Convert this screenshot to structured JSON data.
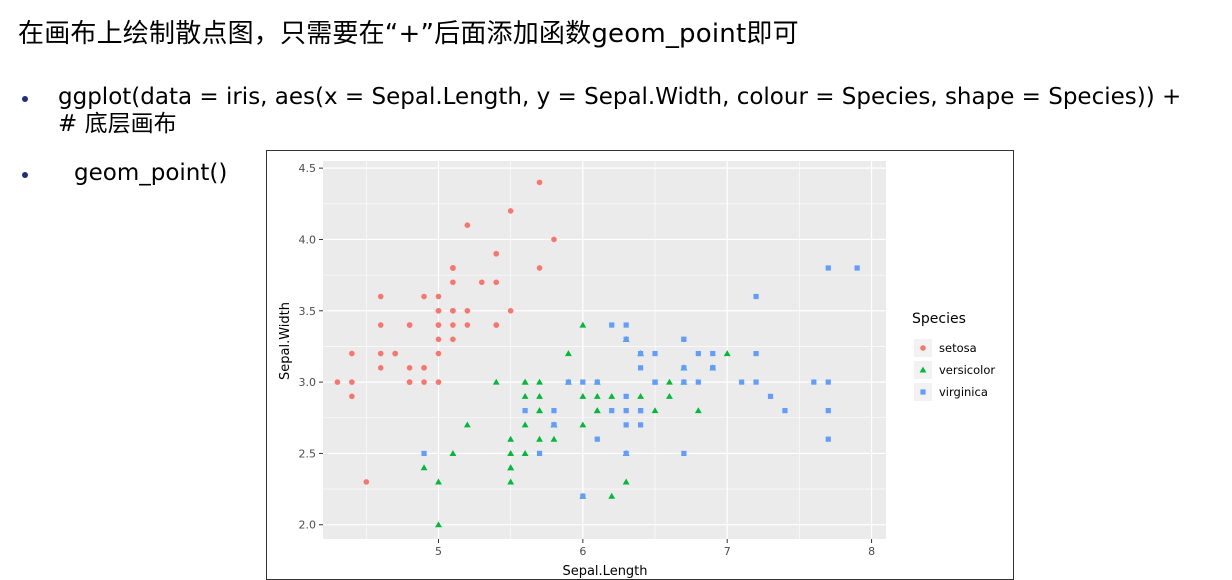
{
  "slide": {
    "title": "在画布上绘制散点图，只需要在“+”后面添加函数geom_point即可",
    "bullets": [
      {
        "line1": "ggplot(data = iris, aes(x = Sepal.Length, y = Sepal.Width, colour = Species, shape = Species)) +",
        "line2": "# 底层画布"
      },
      {
        "line1": "geom_point()"
      }
    ]
  },
  "colors": {
    "setosa": "#F8766D",
    "versicolor": "#00BA38",
    "virginica": "#619CFF",
    "panel": "#EBEBEB",
    "grid": "#FFFFFF",
    "bullet": "#1f2f7a"
  },
  "chart_data": {
    "type": "scatter",
    "title": "",
    "xlabel": "Sepal.Length",
    "ylabel": "Sepal.Width",
    "xlim": [
      4.2,
      8.1
    ],
    "ylim": [
      1.9,
      4.55
    ],
    "xticks": [
      5,
      6,
      7,
      8
    ],
    "yticks": [
      2.0,
      2.5,
      3.0,
      3.5,
      4.0,
      4.5
    ],
    "ytick_labels": [
      "2.0",
      "2.5",
      "3.0",
      "3.5",
      "4.0",
      "4.5"
    ],
    "xtick_labels": [
      "5",
      "6",
      "7",
      "8"
    ],
    "grid": true,
    "legend": {
      "title": "Species",
      "position": "right"
    },
    "series": [
      {
        "name": "setosa",
        "shape": "circle",
        "points": [
          [
            5.1,
            3.5
          ],
          [
            4.9,
            3.0
          ],
          [
            4.7,
            3.2
          ],
          [
            4.6,
            3.1
          ],
          [
            5.0,
            3.6
          ],
          [
            5.4,
            3.9
          ],
          [
            4.6,
            3.4
          ],
          [
            5.0,
            3.4
          ],
          [
            4.4,
            2.9
          ],
          [
            4.9,
            3.1
          ],
          [
            5.4,
            3.7
          ],
          [
            4.8,
            3.4
          ],
          [
            4.8,
            3.0
          ],
          [
            4.3,
            3.0
          ],
          [
            5.8,
            4.0
          ],
          [
            5.7,
            4.4
          ],
          [
            5.4,
            3.9
          ],
          [
            5.1,
            3.5
          ],
          [
            5.7,
            3.8
          ],
          [
            5.1,
            3.8
          ],
          [
            5.4,
            3.4
          ],
          [
            5.1,
            3.7
          ],
          [
            4.6,
            3.6
          ],
          [
            5.1,
            3.3
          ],
          [
            4.8,
            3.4
          ],
          [
            5.0,
            3.0
          ],
          [
            5.0,
            3.4
          ],
          [
            5.2,
            3.5
          ],
          [
            5.2,
            3.4
          ],
          [
            4.7,
            3.2
          ],
          [
            4.8,
            3.1
          ],
          [
            5.4,
            3.4
          ],
          [
            5.2,
            4.1
          ],
          [
            5.5,
            4.2
          ],
          [
            4.9,
            3.1
          ],
          [
            5.0,
            3.2
          ],
          [
            5.5,
            3.5
          ],
          [
            4.9,
            3.6
          ],
          [
            4.4,
            3.0
          ],
          [
            5.1,
            3.4
          ],
          [
            5.0,
            3.5
          ],
          [
            4.5,
            2.3
          ],
          [
            4.4,
            3.2
          ],
          [
            5.0,
            3.5
          ],
          [
            5.1,
            3.8
          ],
          [
            4.8,
            3.0
          ],
          [
            5.1,
            3.8
          ],
          [
            4.6,
            3.2
          ],
          [
            5.3,
            3.7
          ],
          [
            5.0,
            3.3
          ]
        ]
      },
      {
        "name": "versicolor",
        "shape": "triangle",
        "points": [
          [
            7.0,
            3.2
          ],
          [
            6.4,
            3.2
          ],
          [
            6.9,
            3.1
          ],
          [
            5.5,
            2.3
          ],
          [
            6.5,
            2.8
          ],
          [
            5.7,
            2.8
          ],
          [
            6.3,
            3.3
          ],
          [
            4.9,
            2.4
          ],
          [
            6.6,
            2.9
          ],
          [
            5.2,
            2.7
          ],
          [
            5.0,
            2.0
          ],
          [
            5.9,
            3.0
          ],
          [
            6.0,
            2.2
          ],
          [
            6.1,
            2.9
          ],
          [
            5.6,
            2.9
          ],
          [
            6.7,
            3.1
          ],
          [
            5.6,
            3.0
          ],
          [
            5.8,
            2.7
          ],
          [
            6.2,
            2.2
          ],
          [
            5.6,
            2.5
          ],
          [
            5.9,
            3.2
          ],
          [
            6.1,
            2.8
          ],
          [
            6.3,
            2.5
          ],
          [
            6.1,
            2.8
          ],
          [
            6.4,
            2.9
          ],
          [
            6.6,
            3.0
          ],
          [
            6.8,
            2.8
          ],
          [
            6.7,
            3.0
          ],
          [
            6.0,
            2.9
          ],
          [
            5.7,
            2.6
          ],
          [
            5.5,
            2.4
          ],
          [
            5.5,
            2.4
          ],
          [
            5.8,
            2.7
          ],
          [
            6.0,
            2.7
          ],
          [
            5.4,
            3.0
          ],
          [
            6.0,
            3.4
          ],
          [
            6.7,
            3.1
          ],
          [
            6.3,
            2.3
          ],
          [
            5.6,
            3.0
          ],
          [
            5.5,
            2.5
          ],
          [
            5.5,
            2.6
          ],
          [
            6.1,
            3.0
          ],
          [
            5.8,
            2.6
          ],
          [
            5.0,
            2.3
          ],
          [
            5.6,
            2.7
          ],
          [
            5.7,
            3.0
          ],
          [
            5.7,
            2.9
          ],
          [
            6.2,
            2.9
          ],
          [
            5.1,
            2.5
          ],
          [
            5.7,
            2.8
          ]
        ]
      },
      {
        "name": "virginica",
        "shape": "square",
        "points": [
          [
            6.3,
            3.3
          ],
          [
            5.8,
            2.7
          ],
          [
            7.1,
            3.0
          ],
          [
            6.3,
            2.9
          ],
          [
            6.5,
            3.0
          ],
          [
            7.6,
            3.0
          ],
          [
            4.9,
            2.5
          ],
          [
            7.3,
            2.9
          ],
          [
            6.7,
            2.5
          ],
          [
            7.2,
            3.6
          ],
          [
            6.5,
            3.2
          ],
          [
            6.4,
            2.7
          ],
          [
            6.8,
            3.0
          ],
          [
            5.7,
            2.5
          ],
          [
            5.8,
            2.8
          ],
          [
            6.4,
            3.2
          ],
          [
            6.5,
            3.0
          ],
          [
            7.7,
            3.8
          ],
          [
            7.7,
            2.6
          ],
          [
            6.0,
            2.2
          ],
          [
            6.9,
            3.2
          ],
          [
            5.6,
            2.8
          ],
          [
            7.7,
            2.8
          ],
          [
            6.3,
            2.7
          ],
          [
            6.7,
            3.3
          ],
          [
            7.2,
            3.2
          ],
          [
            6.2,
            2.8
          ],
          [
            6.1,
            3.0
          ],
          [
            6.4,
            2.8
          ],
          [
            7.2,
            3.0
          ],
          [
            7.4,
            2.8
          ],
          [
            7.9,
            3.8
          ],
          [
            6.4,
            2.8
          ],
          [
            6.3,
            2.8
          ],
          [
            6.1,
            2.6
          ],
          [
            7.7,
            3.0
          ],
          [
            6.3,
            3.4
          ],
          [
            6.4,
            3.1
          ],
          [
            6.0,
            3.0
          ],
          [
            6.9,
            3.1
          ],
          [
            6.7,
            3.1
          ],
          [
            6.9,
            3.1
          ],
          [
            5.8,
            2.7
          ],
          [
            6.8,
            3.2
          ],
          [
            6.7,
            3.3
          ],
          [
            6.7,
            3.0
          ],
          [
            6.3,
            2.5
          ],
          [
            6.5,
            3.0
          ],
          [
            6.2,
            3.4
          ],
          [
            5.9,
            3.0
          ]
        ]
      }
    ]
  }
}
